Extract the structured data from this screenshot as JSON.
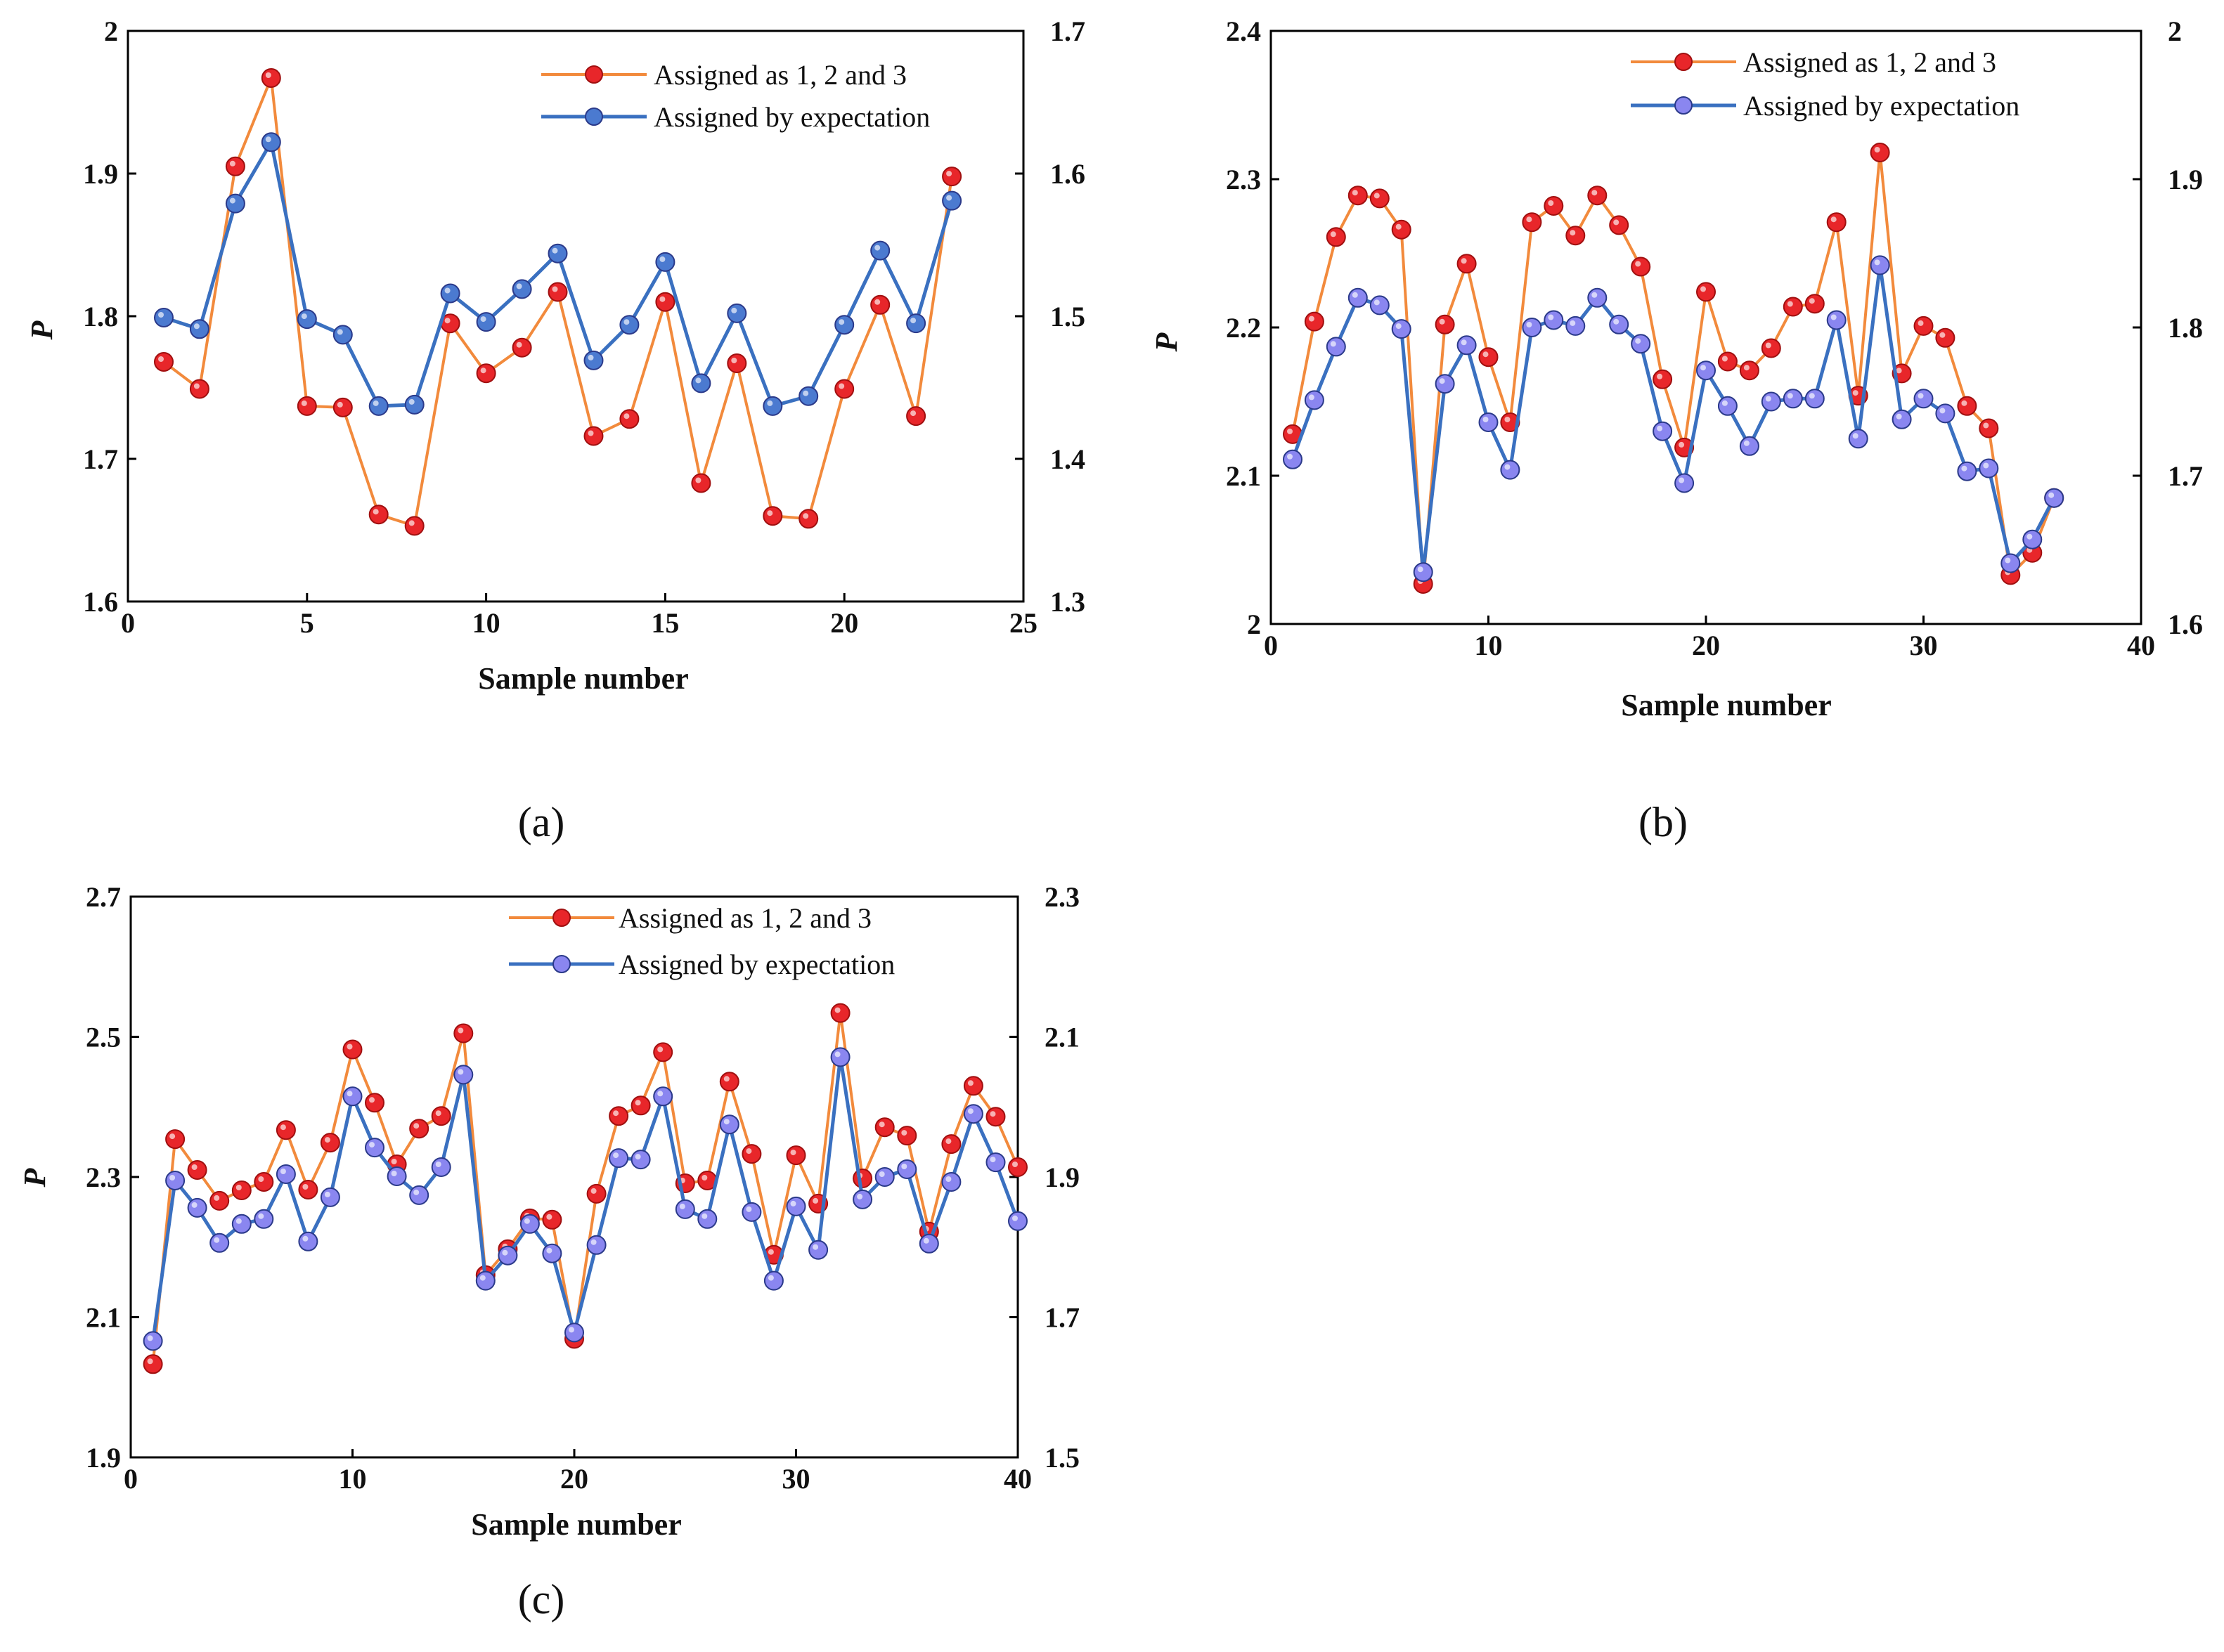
{
  "chart_data": [
    {
      "type": "line",
      "panel_label": "(a)",
      "xlabel": "Sample number",
      "ylabel": "P",
      "xlim": [
        0,
        25
      ],
      "ylim": [
        1.6,
        2.0
      ],
      "y2lim": [
        1.3,
        1.7
      ],
      "x_ticks": [
        "0",
        "5",
        "10",
        "15",
        "20",
        "25"
      ],
      "y_ticks": [
        "1.6",
        "1.7",
        "1.8",
        "1.9",
        "2"
      ],
      "y2_ticks": [
        "1.3",
        "1.4",
        "1.5",
        "1.6",
        "1.7"
      ],
      "legend_position": "top-right",
      "x": [
        1,
        2,
        3,
        4,
        5,
        6,
        7,
        8,
        9,
        10,
        11,
        12,
        13,
        14,
        15,
        16,
        17,
        18,
        19,
        20,
        21,
        22,
        23
      ],
      "series": [
        {
          "name": "Assigned as 1, 2 and 3",
          "axis": "left",
          "color": "#f28a3c",
          "marker": "#e8262a",
          "values": [
            1.768,
            1.749,
            1.905,
            1.967,
            1.737,
            1.736,
            1.661,
            1.653,
            1.795,
            1.76,
            1.778,
            1.817,
            1.716,
            1.728,
            1.81,
            1.683,
            1.767,
            1.66,
            1.658,
            1.749,
            1.808,
            1.73,
            1.898
          ]
        },
        {
          "name": "Assigned by expectation",
          "axis": "right",
          "color": "#3a70c0",
          "marker": "#4b7ad0",
          "values": [
            1.499,
            1.491,
            1.579,
            1.622,
            1.498,
            1.487,
            1.437,
            1.438,
            1.516,
            1.496,
            1.519,
            1.544,
            1.469,
            1.494,
            1.538,
            1.453,
            1.502,
            1.437,
            1.444,
            1.494,
            1.546,
            1.495,
            1.581
          ]
        }
      ]
    },
    {
      "type": "line",
      "panel_label": "(b)",
      "xlabel": "Sample number",
      "ylabel": "P",
      "xlim": [
        0,
        40
      ],
      "ylim": [
        2.0,
        2.4
      ],
      "y2lim": [
        1.6,
        2.0
      ],
      "x_ticks": [
        "0",
        "10",
        "20",
        "30",
        "40"
      ],
      "y_ticks": [
        "2",
        "2.1",
        "2.2",
        "2.3",
        "2.4"
      ],
      "y2_ticks": [
        "1.6",
        "1.7",
        "1.8",
        "1.9",
        "2"
      ],
      "legend_position": "top-right",
      "x": [
        1,
        2,
        3,
        4,
        5,
        6,
        7,
        8,
        9,
        10,
        11,
        12,
        13,
        14,
        15,
        16,
        17,
        18,
        19,
        20,
        21,
        22,
        23,
        24,
        25,
        26,
        27,
        28,
        29,
        30,
        31,
        32,
        33,
        34,
        35,
        36
      ],
      "series": [
        {
          "name": "Assigned as 1, 2 and 3",
          "axis": "left",
          "color": "#f28a3c",
          "marker": "#e8262a",
          "values": [
            2.128,
            2.204,
            2.261,
            2.289,
            2.287,
            2.266,
            2.027,
            2.202,
            2.243,
            2.18,
            2.136,
            2.271,
            2.282,
            2.262,
            2.289,
            2.269,
            2.241,
            2.165,
            2.119,
            2.224,
            2.177,
            2.171,
            2.186,
            2.214,
            2.216,
            2.271,
            2.154,
            2.318,
            2.169,
            2.201,
            2.193,
            2.147,
            2.132,
            2.033,
            2.048,
            2.085
          ]
        },
        {
          "name": "Assigned by expectation",
          "axis": "right",
          "color": "#3a70c0",
          "marker": "#8a86f0",
          "values": [
            1.711,
            1.751,
            1.787,
            1.82,
            1.815,
            1.799,
            1.635,
            1.762,
            1.788,
            1.736,
            1.704,
            1.8,
            1.805,
            1.801,
            1.82,
            1.802,
            1.789,
            1.73,
            1.695,
            1.771,
            1.747,
            1.72,
            1.75,
            1.752,
            1.752,
            1.805,
            1.725,
            1.842,
            1.738,
            1.752,
            1.742,
            1.703,
            1.705,
            1.641,
            1.657,
            1.685
          ]
        }
      ]
    },
    {
      "type": "line",
      "panel_label": "(c)",
      "xlabel": "Sample number",
      "ylabel": "P",
      "xlim": [
        0,
        40
      ],
      "ylim": [
        1.9,
        2.7
      ],
      "y2lim": [
        1.5,
        2.3
      ],
      "x_ticks": [
        "0",
        "10",
        "20",
        "30",
        "40"
      ],
      "y_ticks": [
        "1.9",
        "2.1",
        "2.3",
        "2.5",
        "2.7"
      ],
      "y2_ticks": [
        "1.5",
        "1.7",
        "1.9",
        "2.1",
        "2.3"
      ],
      "legend_position": "top-right",
      "x": [
        1,
        2,
        3,
        4,
        5,
        6,
        7,
        8,
        9,
        10,
        11,
        12,
        13,
        14,
        15,
        16,
        17,
        18,
        19,
        20,
        21,
        22,
        23,
        24,
        25,
        26,
        27,
        28,
        29,
        30,
        31,
        32,
        33,
        34,
        35,
        36,
        37,
        38,
        39,
        40
      ],
      "series": [
        {
          "name": "Assigned as 1, 2 and 3",
          "axis": "left",
          "color": "#f28a3c",
          "marker": "#e8262a",
          "values": [
            2.033,
            2.354,
            2.31,
            2.266,
            2.281,
            2.293,
            2.367,
            2.282,
            2.349,
            2.482,
            2.406,
            2.318,
            2.369,
            2.387,
            2.505,
            2.16,
            2.197,
            2.241,
            2.239,
            2.069,
            2.276,
            2.387,
            2.402,
            2.478,
            2.291,
            2.295,
            2.436,
            2.333,
            2.189,
            2.331,
            2.262,
            2.534,
            2.298,
            2.371,
            2.359,
            2.222,
            2.347,
            2.43,
            2.386,
            2.314
          ]
        },
        {
          "name": "Assigned by expectation",
          "axis": "right",
          "color": "#3a70c0",
          "marker": "#8a86f0",
          "values": [
            1.666,
            1.895,
            1.856,
            1.806,
            1.833,
            1.84,
            1.904,
            1.808,
            1.871,
            2.015,
            1.942,
            1.901,
            1.874,
            1.914,
            2.046,
            1.752,
            1.788,
            1.833,
            1.791,
            1.678,
            1.803,
            1.927,
            1.925,
            2.015,
            1.854,
            1.84,
            1.975,
            1.85,
            1.752,
            1.858,
            1.796,
            2.071,
            1.868,
            1.9,
            1.911,
            1.805,
            1.893,
            1.99,
            1.921,
            1.837
          ]
        }
      ]
    }
  ]
}
